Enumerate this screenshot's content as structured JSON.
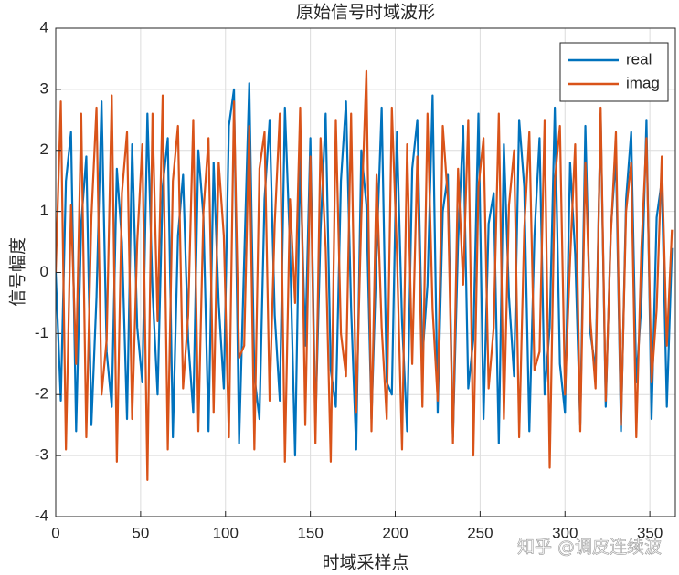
{
  "chart_data": {
    "type": "line",
    "title": "原始信号时域波形",
    "xlabel": "时域采样点",
    "ylabel": "信号幅度",
    "watermark": "知乎 @调皮连续波",
    "x": [
      0,
      3,
      6,
      9,
      12,
      15,
      18,
      21,
      24,
      27,
      30,
      33,
      36,
      39,
      42,
      45,
      48,
      51,
      54,
      57,
      60,
      63,
      66,
      69,
      72,
      75,
      78,
      81,
      84,
      87,
      90,
      93,
      96,
      99,
      102,
      105,
      108,
      111,
      114,
      117,
      120,
      123,
      126,
      129,
      132,
      135,
      138,
      141,
      144,
      147,
      150,
      153,
      156,
      159,
      162,
      165,
      168,
      171,
      174,
      177,
      180,
      183,
      186,
      189,
      192,
      195,
      198,
      201,
      204,
      207,
      210,
      213,
      216,
      219,
      222,
      225,
      228,
      231,
      234,
      237,
      240,
      243,
      246,
      249,
      252,
      255,
      258,
      261,
      264,
      267,
      270,
      273,
      276,
      279,
      282,
      285,
      288,
      291,
      294,
      297,
      300,
      303,
      306,
      309,
      312,
      315,
      318,
      321,
      324,
      327,
      330,
      333,
      336,
      339,
      342,
      345,
      348,
      351,
      354,
      357,
      360,
      363
    ],
    "series": [
      {
        "name": "real",
        "color": "#0072bd",
        "values": [
          0,
          -2.1,
          1.5,
          2.3,
          -2.6,
          0.8,
          1.9,
          -2.5,
          -0.4,
          2.8,
          -1.3,
          -2.2,
          1.7,
          0.5,
          -2.4,
          2.1,
          -0.9,
          -1.8,
          2.6,
          -0.3,
          -2.0,
          1.4,
          2.2,
          -2.7,
          0.6,
          1.6,
          -1.1,
          -2.3,
          2.0,
          0.9,
          -2.6,
          1.8,
          -0.5,
          -1.9,
          2.4,
          3.0,
          -2.8,
          0.2,
          3.1,
          -1.7,
          -2.4,
          1.2,
          2.5,
          -0.7,
          -2.1,
          2.7,
          0.4,
          -3.0,
          1.9,
          -1.2,
          2.2,
          -2.5,
          0.7,
          2.6,
          -1.6,
          -2.2,
          1.5,
          2.8,
          -0.6,
          -2.9,
          2.0,
          1.1,
          -2.4,
          0.3,
          2.7,
          -1.8,
          -2.0,
          2.3,
          -0.8,
          -2.6,
          1.7,
          2.5,
          -1.4,
          -0.2,
          2.9,
          -2.3,
          1.0,
          1.6,
          -2.7,
          0.5,
          2.4,
          -1.9,
          -1.1,
          2.6,
          -2.4,
          0.8,
          1.3,
          -2.8,
          2.1,
          -0.4,
          -1.7,
          2.5,
          1.4,
          -2.6,
          0.6,
          2.2,
          -2.0,
          -0.9,
          2.7,
          -1.5,
          -2.3,
          1.8,
          0.3,
          -2.5,
          2.4,
          -1.0,
          -1.6,
          2.6,
          -2.2,
          0.7,
          1.9,
          -2.6,
          1.2,
          2.3,
          -1.8,
          -0.5,
          2.5,
          -2.4,
          0.9,
          1.5,
          -2.2,
          0.4
        ]
      },
      {
        "name": "imag",
        "color": "#d95319",
        "values": [
          0,
          2.8,
          -2.9,
          1.1,
          -1.5,
          2.6,
          -2.7,
          0.9,
          2.7,
          -2.0,
          -1.1,
          2.9,
          -3.1,
          1.3,
          2.3,
          -2.4,
          0.5,
          2.1,
          -3.4,
          2.6,
          -0.8,
          2.9,
          -2.9,
          1.5,
          2.4,
          -1.9,
          -0.7,
          2.5,
          -2.6,
          1.0,
          2.2,
          -2.3,
          1.8,
          0.6,
          -2.7,
          2.8,
          -1.4,
          -1.2,
          2.4,
          -2.9,
          1.7,
          2.3,
          -2.1,
          0.8,
          2.6,
          -3.1,
          1.2,
          -0.5,
          2.7,
          -2.5,
          1.9,
          -2.8,
          2.2,
          0.4,
          -3.1,
          2.5,
          -1.0,
          -1.7,
          2.6,
          -2.3,
          0.9,
          3.3,
          -2.6,
          1.6,
          -0.9,
          -2.4,
          2.7,
          0.3,
          -2.9,
          2.1,
          -1.5,
          1.9,
          -2.2,
          2.6,
          -0.6,
          -2.1,
          2.4,
          1.2,
          -2.8,
          1.7,
          -0.2,
          2.5,
          -3.0,
          1.4,
          2.2,
          -1.9,
          -0.9,
          2.6,
          -2.4,
          1.1,
          2.0,
          -2.7,
          0.7,
          2.3,
          -1.6,
          -1.3,
          2.5,
          -3.2,
          1.5,
          2.4,
          -2.0,
          0.2,
          2.1,
          -2.6,
          1.8,
          -0.8,
          -1.9,
          2.7,
          -2.1,
          0.6,
          2.3,
          -2.5,
          1.0,
          1.8,
          -2.7,
          0.4,
          2.2,
          -1.8,
          -0.6,
          1.9,
          -1.2,
          0.7
        ]
      }
    ],
    "xlim": [
      0,
      365
    ],
    "xticks": [
      0,
      50,
      100,
      150,
      200,
      250,
      300,
      350
    ],
    "ylim": [
      -4,
      4
    ],
    "yticks": [
      -4,
      -3,
      -2,
      -1,
      0,
      1,
      2,
      3,
      4
    ],
    "grid": true,
    "legend": "top-right"
  }
}
